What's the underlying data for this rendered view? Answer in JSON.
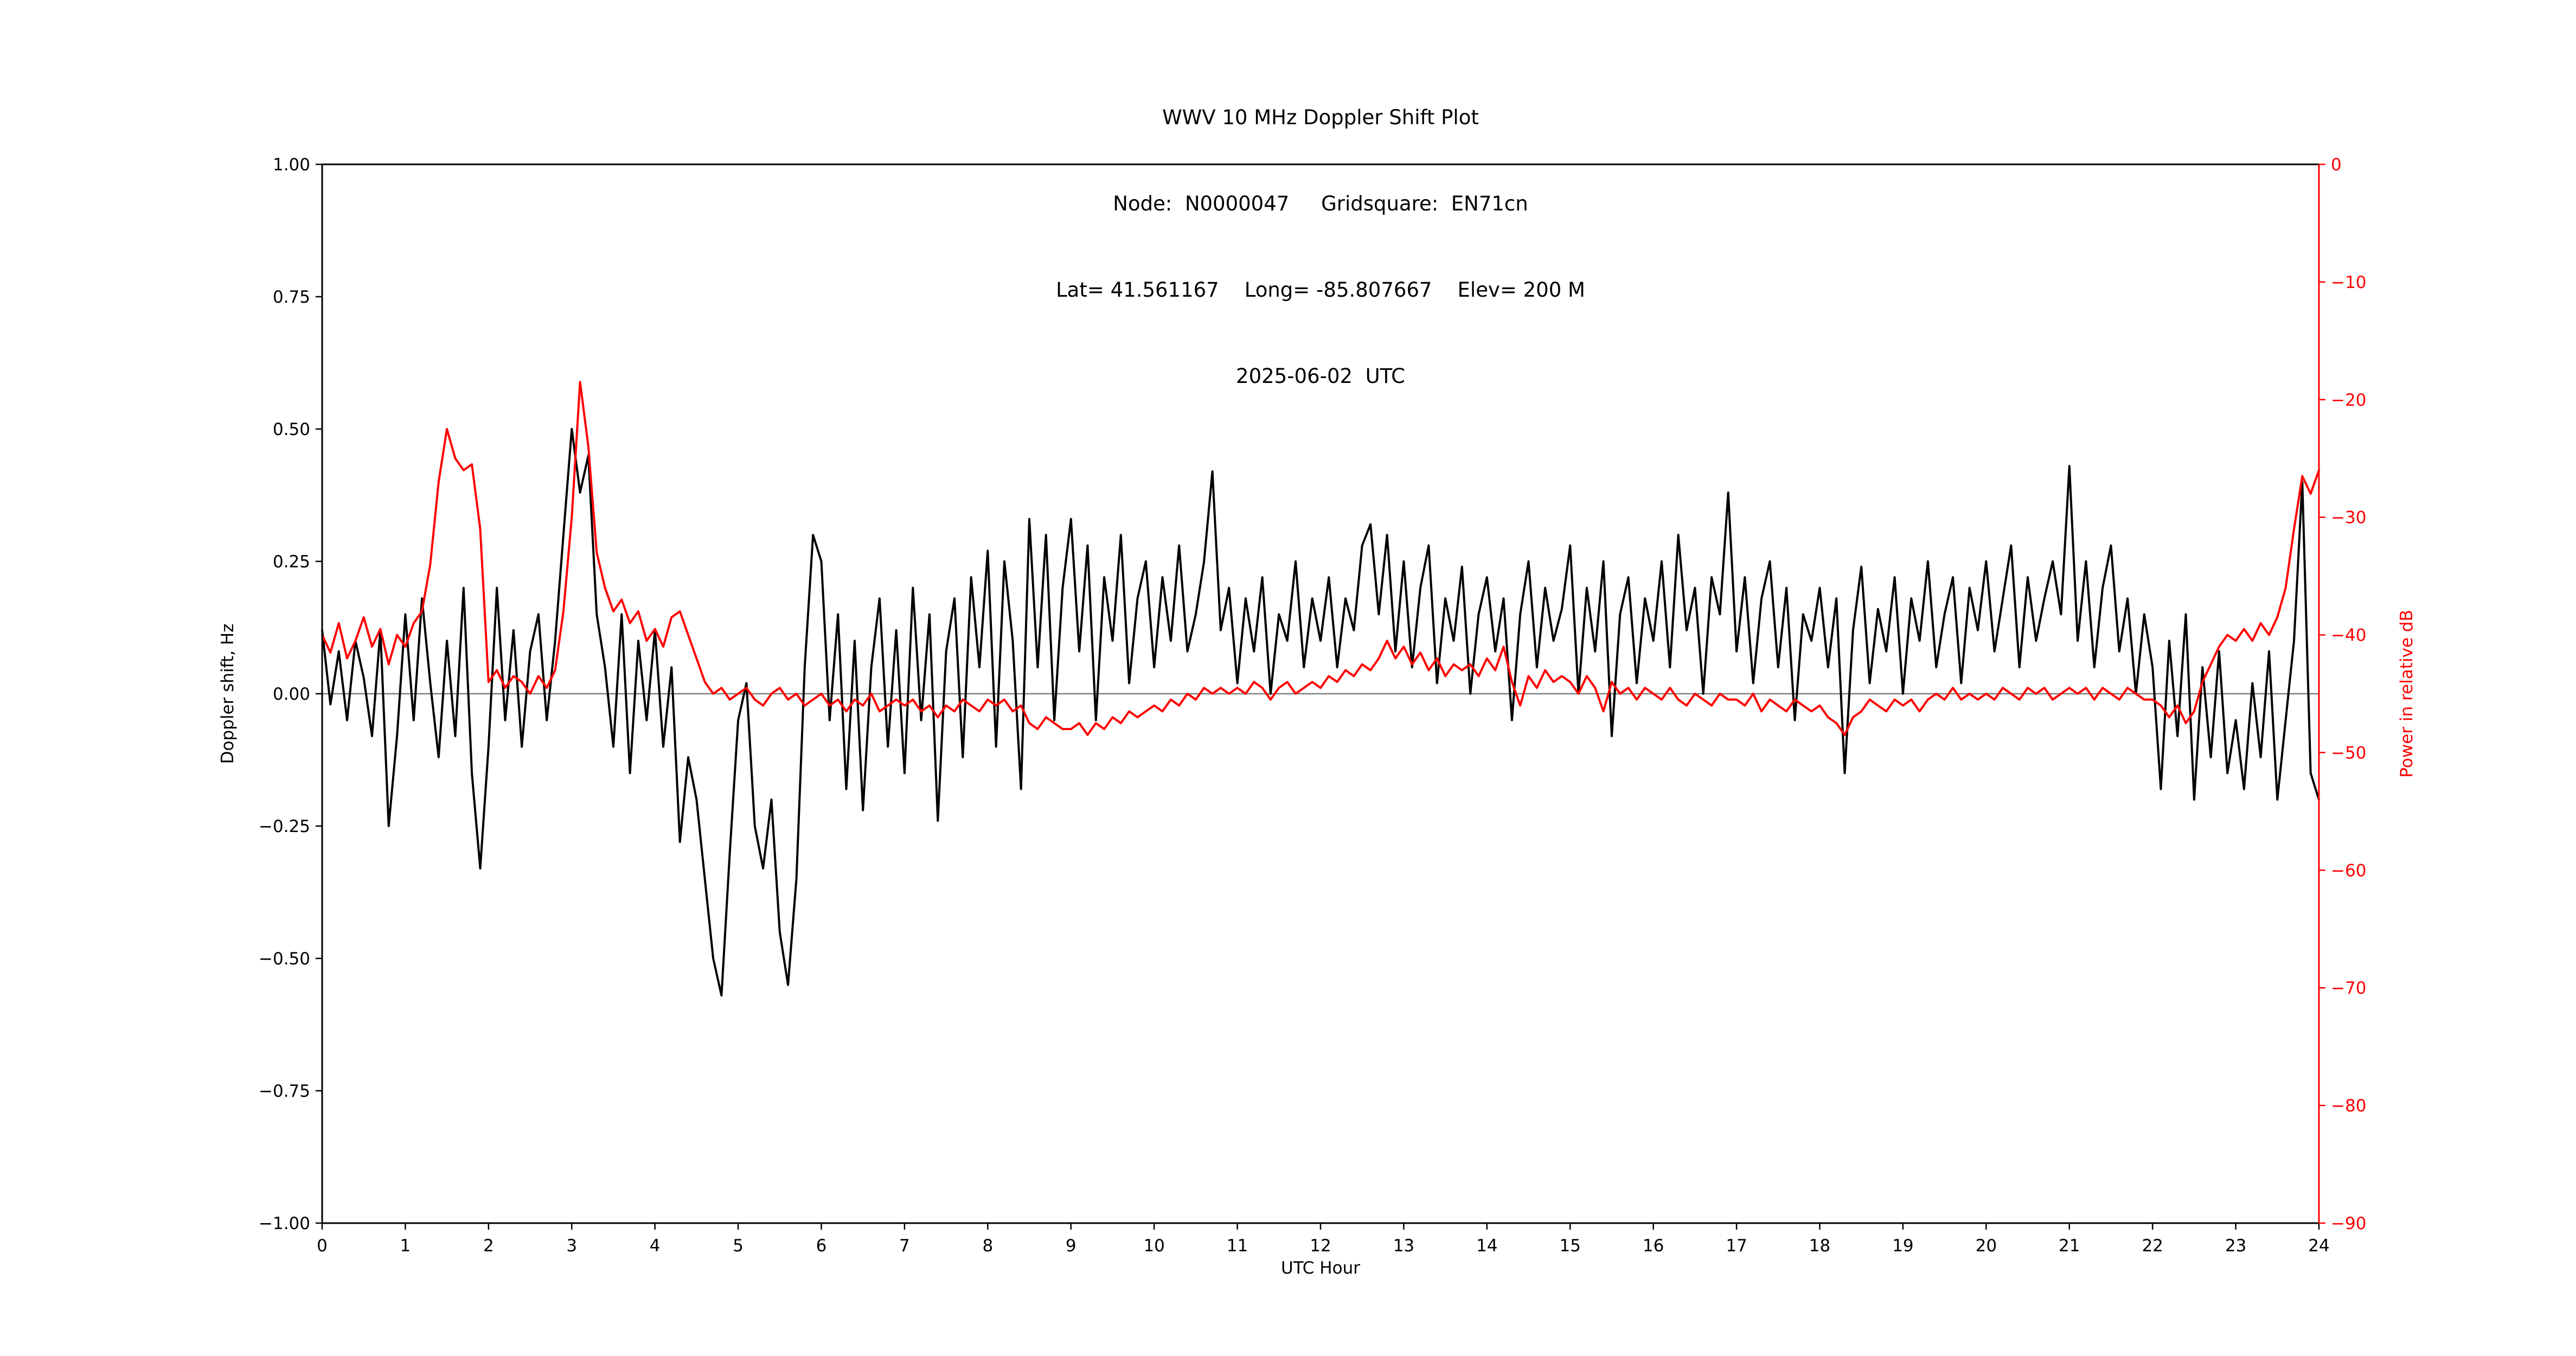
{
  "header": {
    "line1": "WWV 10 MHz Doppler Shift Plot",
    "line2": "Node:  N0000047     Gridsquare:  EN71cn",
    "line3": "Lat= 41.561167    Long= -85.807667    Elev= 200 M",
    "line4": "2025-06-02  UTC"
  },
  "colors": {
    "doppler_line": "#000000",
    "power_line": "#ff0000",
    "right_axis_text": "#ff0000",
    "zero_line": "#7f7f7f",
    "spine": "#000000",
    "background": "#ffffff"
  },
  "chart_data": {
    "type": "line",
    "title": "WWV 10 MHz Doppler Shift Plot",
    "subtitle": "Node:  N0000047     Gridsquare:  EN71cn | Lat= 41.561167    Long= -85.807667    Elev= 200 M | 2025-06-02  UTC",
    "xlabel": "UTC Hour",
    "ylabel_left": "Doppler shift, Hz",
    "ylabel_right": "Power in relative dB",
    "xlim": [
      0,
      24
    ],
    "ylim_left": [
      -1.0,
      1.0
    ],
    "ylim_right": [
      -90,
      0
    ],
    "grid": false,
    "legend": "none",
    "zero_line_y": 0,
    "x_ticks": {
      "values": [
        0,
        1,
        2,
        3,
        4,
        5,
        6,
        7,
        8,
        9,
        10,
        11,
        12,
        13,
        14,
        15,
        16,
        17,
        18,
        19,
        20,
        21,
        22,
        23,
        24
      ],
      "labels": [
        "0",
        "1",
        "2",
        "3",
        "4",
        "5",
        "6",
        "7",
        "8",
        "9",
        "10",
        "11",
        "12",
        "13",
        "14",
        "15",
        "16",
        "17",
        "18",
        "19",
        "20",
        "21",
        "22",
        "23",
        "24"
      ]
    },
    "y_ticks_left": {
      "values": [
        1.0,
        0.75,
        0.5,
        0.25,
        0.0,
        -0.25,
        -0.5,
        -0.75,
        -1.0
      ],
      "labels": [
        "1.00",
        "0.75",
        "0.50",
        "0.25",
        "0.00",
        "−0.25",
        "−0.50",
        "−0.75",
        "−1.00"
      ]
    },
    "y_ticks_right": {
      "values": [
        0,
        -10,
        -20,
        -30,
        -40,
        -50,
        -60,
        -70,
        -80,
        -90
      ],
      "labels": [
        "0",
        "−10",
        "−20",
        "−30",
        "−40",
        "−50",
        "−60",
        "−70",
        "−80",
        "−90"
      ]
    },
    "series": [
      {
        "name": "Doppler shift, Hz",
        "slug": "doppler-shift-series",
        "axis": "left",
        "color": "#000000",
        "x_start": 0,
        "x_step": 0.1,
        "y": [
          0.12,
          -0.02,
          0.08,
          -0.05,
          0.1,
          0.03,
          -0.08,
          0.12,
          -0.25,
          -0.08,
          0.15,
          -0.05,
          0.18,
          0.02,
          -0.12,
          0.1,
          -0.08,
          0.2,
          -0.15,
          -0.33,
          -0.1,
          0.2,
          -0.05,
          0.12,
          -0.1,
          0.08,
          0.15,
          -0.05,
          0.1,
          0.3,
          0.5,
          0.38,
          0.45,
          0.15,
          0.05,
          -0.1,
          0.15,
          -0.15,
          0.1,
          -0.05,
          0.12,
          -0.1,
          0.05,
          -0.28,
          -0.12,
          -0.2,
          -0.35,
          -0.5,
          -0.57,
          -0.3,
          -0.05,
          0.02,
          -0.25,
          -0.33,
          -0.2,
          -0.45,
          -0.55,
          -0.35,
          0.05,
          0.3,
          0.25,
          -0.05,
          0.15,
          -0.18,
          0.1,
          -0.22,
          0.05,
          0.18,
          -0.1,
          0.12,
          -0.15,
          0.2,
          -0.05,
          0.15,
          -0.24,
          0.08,
          0.18,
          -0.12,
          0.22,
          0.05,
          0.27,
          -0.1,
          0.25,
          0.1,
          -0.18,
          0.33,
          0.05,
          0.3,
          -0.05,
          0.2,
          0.33,
          0.08,
          0.28,
          -0.05,
          0.22,
          0.1,
          0.3,
          0.02,
          0.18,
          0.25,
          0.05,
          0.22,
          0.1,
          0.28,
          0.08,
          0.15,
          0.25,
          0.42,
          0.12,
          0.2,
          0.02,
          0.18,
          0.08,
          0.22,
          0.0,
          0.15,
          0.1,
          0.25,
          0.05,
          0.18,
          0.1,
          0.22,
          0.05,
          0.18,
          0.12,
          0.28,
          0.32,
          0.15,
          0.3,
          0.08,
          0.25,
          0.05,
          0.2,
          0.28,
          0.02,
          0.18,
          0.1,
          0.24,
          0.0,
          0.15,
          0.22,
          0.08,
          0.18,
          -0.05,
          0.15,
          0.25,
          0.05,
          0.2,
          0.1,
          0.16,
          0.28,
          0.0,
          0.2,
          0.08,
          0.25,
          -0.08,
          0.15,
          0.22,
          0.02,
          0.18,
          0.1,
          0.25,
          0.05,
          0.3,
          0.12,
          0.2,
          0.0,
          0.22,
          0.15,
          0.38,
          0.08,
          0.22,
          0.02,
          0.18,
          0.25,
          0.05,
          0.2,
          -0.05,
          0.15,
          0.1,
          0.2,
          0.05,
          0.18,
          -0.15,
          0.12,
          0.24,
          0.02,
          0.16,
          0.08,
          0.22,
          0.0,
          0.18,
          0.1,
          0.25,
          0.05,
          0.15,
          0.22,
          0.02,
          0.2,
          0.12,
          0.25,
          0.08,
          0.18,
          0.28,
          0.05,
          0.22,
          0.1,
          0.18,
          0.25,
          0.15,
          0.43,
          0.1,
          0.25,
          0.05,
          0.2,
          0.28,
          0.08,
          0.18,
          0.0,
          0.15,
          0.05,
          -0.18,
          0.1,
          -0.08,
          0.15,
          -0.2,
          0.05,
          -0.12,
          0.08,
          -0.15,
          -0.05,
          -0.18,
          0.02,
          -0.12,
          0.08,
          -0.2,
          -0.05,
          0.1,
          0.4,
          -0.15,
          -0.2
        ]
      },
      {
        "name": "Power in relative dB",
        "slug": "power-series",
        "axis": "right",
        "color": "#ff0000",
        "x_start": 0,
        "x_step": 0.1,
        "y": [
          -40,
          -41.5,
          -39,
          -42,
          -40.5,
          -38.5,
          -41,
          -39.5,
          -42.5,
          -40,
          -41,
          -39,
          -38,
          -34,
          -27,
          -22.5,
          -25,
          -26,
          -25.5,
          -31,
          -44,
          -43,
          -44.5,
          -43.5,
          -44,
          -45,
          -43.5,
          -44.5,
          -43,
          -38,
          -30,
          -18.5,
          -24,
          -33,
          -36,
          -38,
          -37,
          -39,
          -38,
          -40.5,
          -39.5,
          -41,
          -38.5,
          -38,
          -40,
          -42,
          -44,
          -45,
          -44.5,
          -45.5,
          -45,
          -44.5,
          -45.5,
          -46,
          -45,
          -44.5,
          -45.5,
          -45,
          -46,
          -45.5,
          -45,
          -46,
          -45.5,
          -46.5,
          -45.5,
          -46,
          -45,
          -46.5,
          -46,
          -45.5,
          -46,
          -45.5,
          -46.5,
          -46,
          -47,
          -46,
          -46.5,
          -45.5,
          -46,
          -46.5,
          -45.5,
          -46,
          -45.5,
          -46.5,
          -46,
          -47.5,
          -48,
          -47,
          -47.5,
          -48,
          -48,
          -47.5,
          -48.5,
          -47.5,
          -48,
          -47,
          -47.5,
          -46.5,
          -47,
          -46.5,
          -46,
          -46.5,
          -45.5,
          -46,
          -45,
          -45.5,
          -44.5,
          -45,
          -44.5,
          -45,
          -44.5,
          -45,
          -44,
          -44.5,
          -45.5,
          -44.5,
          -44,
          -45,
          -44.5,
          -44,
          -44.5,
          -43.5,
          -44,
          -43,
          -43.5,
          -42.5,
          -43,
          -42,
          -40.5,
          -42,
          -41,
          -42.5,
          -41.5,
          -43,
          -42,
          -43.5,
          -42.5,
          -43,
          -42.5,
          -43.5,
          -42,
          -43,
          -41,
          -44,
          -46,
          -43.5,
          -44.5,
          -43,
          -44,
          -43.5,
          -44,
          -45,
          -43.5,
          -44.5,
          -46.5,
          -44,
          -45,
          -44.5,
          -45.5,
          -44.5,
          -45,
          -45.5,
          -44.5,
          -45.5,
          -46,
          -45,
          -45.5,
          -46,
          -45,
          -45.5,
          -45.5,
          -46,
          -45,
          -46.5,
          -45.5,
          -46,
          -46.5,
          -45.5,
          -46,
          -46.5,
          -46,
          -47,
          -47.5,
          -48.5,
          -47,
          -46.5,
          -45.5,
          -46,
          -46.5,
          -45.5,
          -46,
          -45.5,
          -46.5,
          -45.5,
          -45,
          -45.5,
          -44.5,
          -45.5,
          -45,
          -45.5,
          -45,
          -45.5,
          -44.5,
          -45,
          -45.5,
          -44.5,
          -45,
          -44.5,
          -45.5,
          -45,
          -44.5,
          -45,
          -44.5,
          -45.5,
          -44.5,
          -45,
          -45.5,
          -44.5,
          -45,
          -45.5,
          -45.5,
          -46,
          -47,
          -46,
          -47.5,
          -46.5,
          -44,
          -42.5,
          -41,
          -40,
          -40.5,
          -39.5,
          -40.5,
          -39,
          -40,
          -38.5,
          -36,
          -31,
          -26.5,
          -28,
          -26
        ]
      }
    ]
  }
}
